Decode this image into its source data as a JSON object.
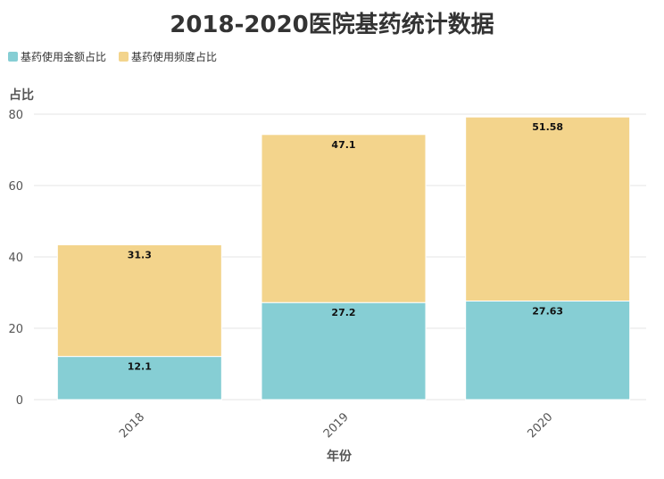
{
  "chart_data": {
    "type": "bar",
    "stacked": true,
    "title": "2018-2020医院基药统计数据",
    "xlabel": "年份",
    "ylabel": "占比",
    "categories": [
      "2018",
      "2019",
      "2020"
    ],
    "series": [
      {
        "name": "基药使用金额占比",
        "values": [
          12.1,
          27.2,
          27.63
        ],
        "color": "#86CED4",
        "labels": [
          "12.1",
          "27.2",
          "27.63"
        ]
      },
      {
        "name": "基药使用频度占比",
        "values": [
          31.3,
          47.1,
          51.58
        ],
        "color": "#F3D48C",
        "labels": [
          "31.3",
          "47.1",
          "51.58"
        ]
      }
    ],
    "ylim": [
      0,
      80
    ],
    "yticks": [
      "0",
      "20",
      "40",
      "60",
      "80"
    ],
    "legend_position": "top-left",
    "grid": true
  }
}
